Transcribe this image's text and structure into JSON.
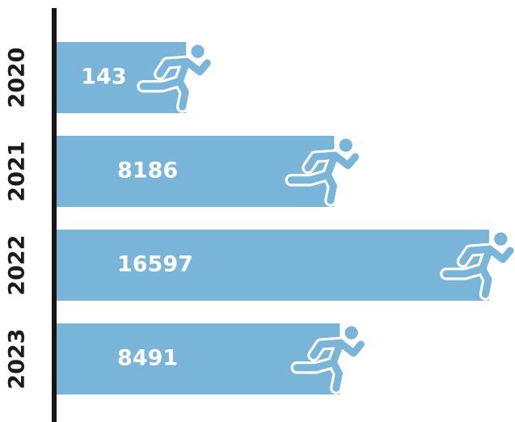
{
  "chart_data": {
    "type": "bar",
    "orientation": "horizontal",
    "categories": [
      "2020",
      "2021",
      "2022",
      "2023"
    ],
    "values": [
      143,
      8186,
      16597,
      8491
    ],
    "color": "#79b5d8"
  }
}
